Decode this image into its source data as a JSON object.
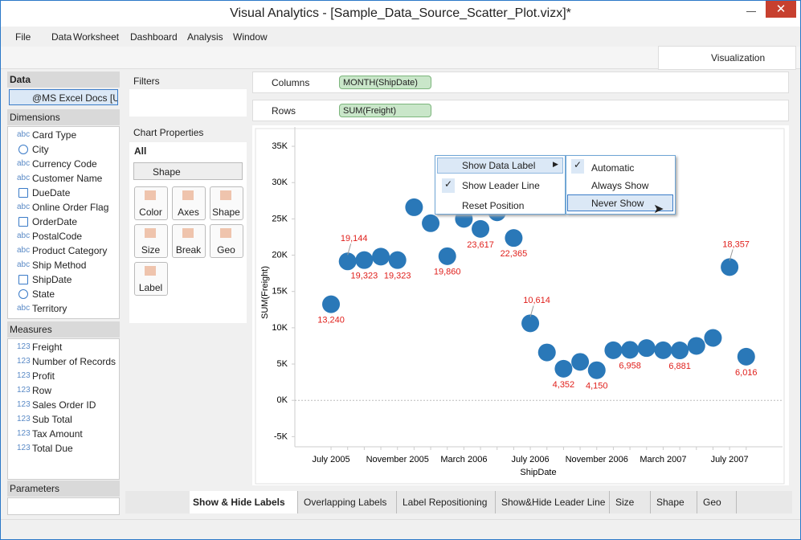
{
  "window": {
    "title": "Visual Analytics - [Sample_Data_Source_Scatter_Plot.vizx]*"
  },
  "menu": [
    "File",
    "Data",
    "Worksheet",
    "Dashboard",
    "Analysis",
    "Window"
  ],
  "ribbon_tab": "Visualization",
  "data_panel": {
    "header": "Data",
    "source": "@MS Excel Docs [U...",
    "dimensions_header": "Dimensions",
    "dimensions": [
      {
        "icon": "abc",
        "name": "Card Type"
      },
      {
        "name": "City"
      },
      {
        "icon": "abc",
        "name": "Currency Code"
      },
      {
        "icon": "abc",
        "name": "Customer Name"
      },
      {
        "name": "DueDate"
      },
      {
        "icon": "abc",
        "name": "Online Order Flag"
      },
      {
        "name": "OrderDate"
      },
      {
        "icon": "abc",
        "name": "PostalCode"
      },
      {
        "icon": "abc",
        "name": "Product Category"
      },
      {
        "icon": "abc",
        "name": "Ship Method"
      },
      {
        "name": "ShipDate"
      },
      {
        "name": "State"
      },
      {
        "icon": "abc",
        "name": "Territory"
      }
    ],
    "measures_header": "Measures",
    "measures": [
      {
        "icon": "123",
        "name": "Freight"
      },
      {
        "icon": "123",
        "name": "Number of Records"
      },
      {
        "icon": "123",
        "name": "Profit"
      },
      {
        "icon": "123",
        "name": "Row"
      },
      {
        "icon": "123",
        "name": "Sales Order ID"
      },
      {
        "icon": "123",
        "name": "Sub Total"
      },
      {
        "icon": "123",
        "name": "Tax Amount"
      },
      {
        "icon": "123",
        "name": "Total Due"
      }
    ],
    "parameters_header": "Parameters"
  },
  "filters": {
    "header": "Filters"
  },
  "chart_properties": {
    "header": "Chart Properties",
    "scope": "All",
    "mark_type": "Shape",
    "buttons": [
      "Color",
      "Axes",
      "Shape",
      "Size",
      "Break",
      "Geo",
      "Label"
    ]
  },
  "shelves": [
    {
      "name": "Columns",
      "pill": "MONTH(ShipDate)"
    },
    {
      "name": "Rows",
      "pill": "SUM(Freight)"
    }
  ],
  "context_menu": {
    "items": [
      "Show Data Label",
      "Show Leader Line",
      "Reset Position"
    ],
    "submenu": [
      "Automatic",
      "Always Show",
      "Never Show"
    ]
  },
  "tabs": [
    "Show & Hide Labels",
    "Overlapping Labels",
    "Label Repositioning",
    "Show&Hide Leader Line",
    "Size",
    "Shape",
    "Geo"
  ],
  "chart_data": {
    "type": "scatter",
    "x_label": "ShipDate",
    "y_label": "SUM(Freight)",
    "color": "#2a78b8",
    "label_color": "#e0201c",
    "categories": [
      "July 2005",
      null,
      null,
      null,
      "November 2005",
      null,
      null,
      null,
      "March 2006",
      null,
      null,
      null,
      "July 2006",
      null,
      null,
      null,
      "November 2006",
      null,
      null,
      null,
      "March 2007",
      null,
      null,
      null,
      "July 2007",
      null
    ],
    "values": [
      13240,
      19144,
      19323,
      19800,
      19323,
      26600,
      24400,
      19860,
      25000,
      23617,
      25900,
      22365,
      10614,
      6600,
      4352,
      5300,
      4150,
      6900,
      6958,
      7200,
      6900,
      6881,
      7500,
      8600,
      18357,
      6016
    ],
    "value_labels": [
      "13,240",
      "19,144",
      "19,323",
      null,
      "19,323",
      null,
      null,
      "19,860",
      null,
      "23,617",
      null,
      "22,365",
      "10,614",
      null,
      "4,352",
      null,
      "4,150",
      null,
      "6,958",
      null,
      null,
      "6,881",
      null,
      null,
      "18,357",
      "6,016"
    ],
    "ylim": [
      -6400,
      37000
    ],
    "yticks": [
      {
        "value": 35000,
        "label": "35K"
      },
      {
        "value": 30000,
        "label": "30K"
      },
      {
        "value": 25000,
        "label": "25K"
      },
      {
        "value": 20000,
        "label": "20K"
      },
      {
        "value": 15000,
        "label": "15K"
      },
      {
        "value": 10000,
        "label": "10K"
      },
      {
        "value": 5000,
        "label": "5K"
      },
      {
        "value": 0,
        "label": "0K"
      },
      {
        "value": -5000,
        "label": "-5K"
      }
    ],
    "grid": false
  }
}
